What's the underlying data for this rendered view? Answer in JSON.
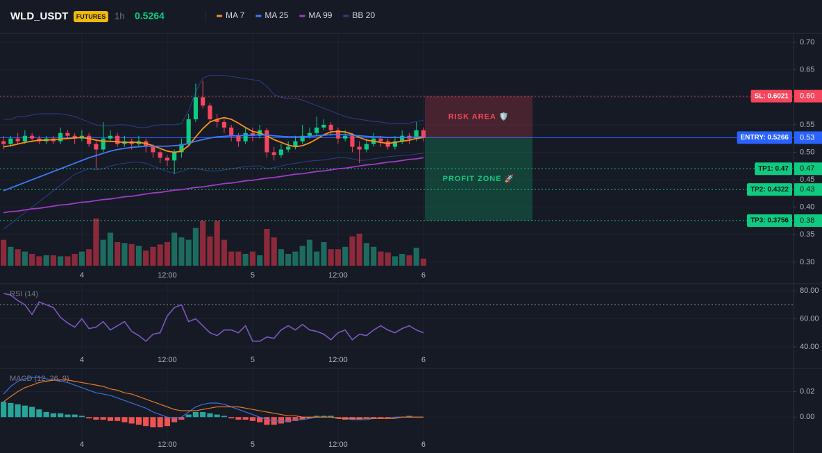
{
  "chart_data": [
    {
      "type": "candlestick",
      "title": "WLD_USDT",
      "badge": "FUTURES",
      "interval": "1h",
      "last_price": 0.5264,
      "up_color": "#0ecb81",
      "down_color": "#f6465d",
      "grid": true,
      "xlim": [
        -0.5,
        111
      ],
      "xticks": [
        {
          "value": 11,
          "label": "4"
        },
        {
          "value": 23,
          "label": "12:00"
        },
        {
          "value": 35,
          "label": "5"
        },
        {
          "value": 47,
          "label": "12:00"
        },
        {
          "value": 59,
          "label": "6"
        }
      ],
      "ylim": [
        0.291,
        0.714
      ],
      "yticks": [
        {
          "value": 0.7,
          "label": "0.70"
        },
        0.65,
        {
          "value": 0.6,
          "label": "0.60"
        },
        0.55,
        {
          "value": 0.5,
          "label": "0.50"
        },
        0.45,
        {
          "value": 0.4,
          "label": "0.40"
        },
        0.35,
        {
          "value": 0.3,
          "label": "0.30"
        }
      ],
      "candles": {
        "open": [
          0.52,
          0.515,
          0.525,
          0.52,
          0.53,
          0.525,
          0.52,
          0.525,
          0.52,
          0.535,
          0.53,
          0.525,
          0.53,
          0.515,
          0.505,
          0.525,
          0.53,
          0.515,
          0.52,
          0.515,
          0.52,
          0.51,
          0.5,
          0.49,
          0.485,
          0.5,
          0.515,
          0.56,
          0.6,
          0.585,
          0.56,
          0.555,
          0.545,
          0.53,
          0.52,
          0.535,
          0.53,
          0.54,
          0.5,
          0.495,
          0.505,
          0.51,
          0.52,
          0.53,
          0.535,
          0.545,
          0.55,
          0.54,
          0.525,
          0.53,
          0.51,
          0.505,
          0.515,
          0.525,
          0.52,
          0.51,
          0.52,
          0.53,
          0.525,
          0.54
        ],
        "high": [
          0.53,
          0.53,
          0.535,
          0.54,
          0.535,
          0.53,
          0.53,
          0.53,
          0.545,
          0.54,
          0.535,
          0.54,
          0.535,
          0.52,
          0.555,
          0.54,
          0.535,
          0.53,
          0.525,
          0.53,
          0.525,
          0.515,
          0.505,
          0.495,
          0.505,
          0.525,
          0.57,
          0.625,
          0.63,
          0.59,
          0.57,
          0.56,
          0.55,
          0.535,
          0.545,
          0.545,
          0.55,
          0.545,
          0.51,
          0.515,
          0.52,
          0.53,
          0.55,
          0.545,
          0.565,
          0.56,
          0.555,
          0.545,
          0.54,
          0.535,
          0.52,
          0.525,
          0.535,
          0.53,
          0.525,
          0.53,
          0.54,
          0.535,
          0.555,
          0.545
        ],
        "low": [
          0.505,
          0.51,
          0.515,
          0.515,
          0.52,
          0.515,
          0.515,
          0.515,
          0.515,
          0.525,
          0.515,
          0.52,
          0.51,
          0.47,
          0.5,
          0.52,
          0.51,
          0.51,
          0.505,
          0.51,
          0.5,
          0.49,
          0.48,
          0.475,
          0.46,
          0.49,
          0.51,
          0.555,
          0.58,
          0.555,
          0.545,
          0.535,
          0.52,
          0.51,
          0.515,
          0.52,
          0.525,
          0.49,
          0.485,
          0.49,
          0.5,
          0.505,
          0.515,
          0.525,
          0.53,
          0.54,
          0.53,
          0.515,
          0.52,
          0.5,
          0.48,
          0.5,
          0.51,
          0.51,
          0.505,
          0.505,
          0.515,
          0.515,
          0.52,
          0.52
        ],
        "close": [
          0.515,
          0.525,
          0.52,
          0.53,
          0.525,
          0.52,
          0.525,
          0.52,
          0.535,
          0.53,
          0.525,
          0.53,
          0.515,
          0.505,
          0.525,
          0.53,
          0.515,
          0.52,
          0.515,
          0.52,
          0.51,
          0.5,
          0.49,
          0.485,
          0.5,
          0.515,
          0.56,
          0.6,
          0.585,
          0.56,
          0.555,
          0.545,
          0.53,
          0.52,
          0.535,
          0.53,
          0.54,
          0.5,
          0.495,
          0.505,
          0.51,
          0.52,
          0.53,
          0.535,
          0.545,
          0.55,
          0.54,
          0.525,
          0.53,
          0.51,
          0.505,
          0.515,
          0.525,
          0.52,
          0.51,
          0.52,
          0.53,
          0.525,
          0.54,
          0.5264
        ]
      },
      "volume": {
        "ylim": [
          0,
          100
        ],
        "up_color": "#1d6b5f",
        "down_color": "#8c2a3c",
        "values": [
          55,
          40,
          35,
          30,
          25,
          20,
          22,
          22,
          20,
          20,
          25,
          30,
          35,
          100,
          55,
          70,
          50,
          48,
          46,
          42,
          32,
          40,
          45,
          50,
          70,
          60,
          55,
          80,
          95,
          62,
          95,
          55,
          30,
          30,
          25,
          30,
          22,
          78,
          60,
          35,
          25,
          30,
          42,
          55,
          30,
          50,
          35,
          35,
          40,
          62,
          68,
          48,
          40,
          30,
          28,
          20,
          25,
          22,
          38,
          15
        ]
      },
      "series": [
        {
          "name": "MA 7",
          "color": "#f7931a",
          "values": [
            0.51,
            0.512,
            0.515,
            0.518,
            0.52,
            0.522,
            0.522,
            0.523,
            0.524,
            0.525,
            0.526,
            0.527,
            0.525,
            0.522,
            0.52,
            0.52,
            0.519,
            0.518,
            0.518,
            0.518,
            0.516,
            0.512,
            0.507,
            0.502,
            0.5,
            0.502,
            0.512,
            0.528,
            0.543,
            0.555,
            0.56,
            0.563,
            0.56,
            0.553,
            0.545,
            0.538,
            0.535,
            0.53,
            0.523,
            0.518,
            0.513,
            0.51,
            0.512,
            0.517,
            0.524,
            0.532,
            0.537,
            0.538,
            0.537,
            0.533,
            0.527,
            0.522,
            0.52,
            0.518,
            0.516,
            0.518,
            0.52,
            0.522,
            0.525,
            0.527
          ]
        },
        {
          "name": "MA 25",
          "color": "#3d7bf7",
          "values": [
            0.43,
            0.435,
            0.44,
            0.445,
            0.45,
            0.455,
            0.46,
            0.465,
            0.47,
            0.475,
            0.48,
            0.485,
            0.49,
            0.494,
            0.498,
            0.502,
            0.505,
            0.507,
            0.509,
            0.51,
            0.511,
            0.511,
            0.511,
            0.511,
            0.512,
            0.513,
            0.516,
            0.52,
            0.523,
            0.526,
            0.528,
            0.529,
            0.53,
            0.53,
            0.531,
            0.531,
            0.532,
            0.531,
            0.53,
            0.529,
            0.528,
            0.528,
            0.528,
            0.529,
            0.53,
            0.531,
            0.532,
            0.532,
            0.532,
            0.531,
            0.53,
            0.529,
            0.528,
            0.528,
            0.527,
            0.527,
            0.527,
            0.527,
            0.528,
            0.528
          ]
        },
        {
          "name": "MA 99",
          "color": "#9c3cc4",
          "values": [
            0.39,
            0.392,
            0.393,
            0.395,
            0.397,
            0.398,
            0.4,
            0.402,
            0.404,
            0.405,
            0.407,
            0.409,
            0.41,
            0.412,
            0.414,
            0.415,
            0.417,
            0.419,
            0.42,
            0.422,
            0.424,
            0.426,
            0.427,
            0.429,
            0.431,
            0.432,
            0.434,
            0.436,
            0.437,
            0.439,
            0.441,
            0.443,
            0.444,
            0.446,
            0.448,
            0.449,
            0.451,
            0.453,
            0.454,
            0.456,
            0.458,
            0.46,
            0.461,
            0.463,
            0.465,
            0.466,
            0.468,
            0.47,
            0.471,
            0.473,
            0.475,
            0.477,
            0.478,
            0.48,
            0.482,
            0.483,
            0.485,
            0.487,
            0.488,
            0.49
          ]
        },
        {
          "name": "BB 20",
          "color": "#2c3f88",
          "upper": [
            0.56,
            0.56,
            0.565,
            0.565,
            0.568,
            0.57,
            0.57,
            0.57,
            0.57,
            0.568,
            0.565,
            0.56,
            0.555,
            0.55,
            0.548,
            0.548,
            0.55,
            0.55,
            0.548,
            0.545,
            0.545,
            0.548,
            0.55,
            0.55,
            0.55,
            0.552,
            0.575,
            0.61,
            0.635,
            0.64,
            0.64,
            0.64,
            0.638,
            0.636,
            0.634,
            0.632,
            0.63,
            0.62,
            0.605,
            0.6,
            0.598,
            0.598,
            0.595,
            0.59,
            0.585,
            0.58,
            0.575,
            0.57,
            0.565,
            0.562,
            0.56,
            0.558,
            0.556,
            0.555,
            0.553,
            0.552,
            0.552,
            0.553,
            0.556,
            0.558
          ],
          "lower": [
            0.36,
            0.37,
            0.38,
            0.39,
            0.4,
            0.41,
            0.42,
            0.43,
            0.44,
            0.45,
            0.46,
            0.465,
            0.47,
            0.468,
            0.47,
            0.475,
            0.478,
            0.48,
            0.482,
            0.482,
            0.48,
            0.475,
            0.47,
            0.465,
            0.462,
            0.465,
            0.47,
            0.47,
            0.468,
            0.466,
            0.466,
            0.468,
            0.47,
            0.472,
            0.474,
            0.475,
            0.475,
            0.47,
            0.472,
            0.475,
            0.478,
            0.48,
            0.482,
            0.484,
            0.485,
            0.486,
            0.488,
            0.49,
            0.49,
            0.488,
            0.485,
            0.486,
            0.488,
            0.49,
            0.492,
            0.493,
            0.494,
            0.495,
            0.497,
            0.498
          ]
        }
      ],
      "levels": [
        {
          "value": 0.6021,
          "label": "SL: 0.6021",
          "axis_label": "0.60",
          "color": "#f6465d"
        },
        {
          "value": 0.5266,
          "label": "ENTRY: 0.5266",
          "axis_label": "0.53",
          "color": "#2962ff"
        },
        {
          "value": 0.47,
          "label": "TP1: 0.47",
          "axis_label": "0.47",
          "color": "#0ecb81"
        },
        {
          "value": 0.4322,
          "label": "TP2: 0.4322",
          "axis_label": "0.43",
          "color": "#0ecb81"
        },
        {
          "value": 0.3756,
          "label": "TP3: 0.3756",
          "axis_label": "0.38",
          "color": "#0ecb81"
        }
      ],
      "zones": [
        {
          "label": "RISK AREA 🛡️",
          "color": "#f6465d"
        },
        {
          "label": "PROFIT ZONE 🚀",
          "color": "#0ecb81"
        }
      ]
    },
    {
      "type": "line",
      "title": "RSI (14)",
      "color": "#7e57c2",
      "level": 70,
      "ylim": [
        36,
        84.5
      ],
      "yticks": [
        {
          "value": 80,
          "label": "80.00"
        },
        {
          "value": 60,
          "label": "60.00"
        },
        {
          "value": 40,
          "label": "40.00"
        }
      ],
      "values": [
        78,
        77,
        73,
        70,
        63,
        72,
        70,
        68,
        61,
        57,
        54,
        60,
        53,
        54,
        58,
        52,
        55,
        58,
        51,
        48,
        44,
        49,
        50,
        62,
        68,
        70,
        58,
        60,
        55,
        50,
        48,
        52,
        52,
        50,
        55,
        44,
        44,
        47,
        46,
        52,
        55,
        52,
        56,
        52,
        51,
        49,
        45,
        50,
        52,
        45,
        49,
        48,
        52,
        55,
        52,
        50,
        53,
        55,
        52,
        50
      ]
    },
    {
      "type": "macd",
      "title": "MACD (12, 26, 9)",
      "ylim": [
        -0.021,
        0.037
      ],
      "yticks": [
        0.02,
        {
          "value": 0,
          "label": "0.00"
        }
      ],
      "macd": {
        "color": "#3d6fe0",
        "values": [
          0.018,
          0.024,
          0.028,
          0.03,
          0.031,
          0.031,
          0.03,
          0.029,
          0.028,
          0.027,
          0.025,
          0.023,
          0.021,
          0.019,
          0.018,
          0.017,
          0.015,
          0.013,
          0.011,
          0.009,
          0.007,
          0.004,
          0.002,
          0,
          -0.001,
          0,
          0.004,
          0.008,
          0.01,
          0.011,
          0.011,
          0.01,
          0.008,
          0.006,
          0.004,
          0.002,
          0,
          -0.002,
          -0.003,
          -0.003,
          -0.003,
          -0.002,
          -0.002,
          -0.001,
          0,
          0,
          0,
          -0.001,
          -0.001,
          -0.002,
          -0.002,
          -0.002,
          -0.001,
          -0.001,
          -0.001,
          0,
          0,
          0,
          0,
          0
        ]
      },
      "signal": {
        "color": "#e8782a",
        "values": [
          0.012,
          0.016,
          0.02,
          0.023,
          0.025,
          0.027,
          0.028,
          0.029,
          0.029,
          0.029,
          0.028,
          0.027,
          0.026,
          0.025,
          0.024,
          0.022,
          0.021,
          0.019,
          0.018,
          0.016,
          0.014,
          0.012,
          0.01,
          0.008,
          0.006,
          0.005,
          0.005,
          0.005,
          0.006,
          0.007,
          0.008,
          0.008,
          0.008,
          0.008,
          0.007,
          0.006,
          0.005,
          0.004,
          0.003,
          0.002,
          0.001,
          0.001,
          0,
          0,
          0,
          0,
          0,
          -0.001,
          -0.001,
          -0.001,
          -0.001,
          -0.001,
          -0.001,
          -0.001,
          -0.001,
          -0.001,
          0,
          0,
          0,
          0
        ]
      },
      "histogram": {
        "up_color": "#26a69a",
        "down_color": "#ef5350",
        "values": [
          0.012,
          0.011,
          0.01,
          0.009,
          0.008,
          0.006,
          0.004,
          0.003,
          0.003,
          0.002,
          0.002,
          0.001,
          -0.001,
          -0.002,
          -0.002,
          -0.003,
          -0.003,
          -0.004,
          -0.005,
          -0.006,
          -0.007,
          -0.008,
          -0.008,
          -0.007,
          -0.004,
          -0.002,
          0.002,
          0.004,
          0.004,
          0.003,
          0.002,
          0.001,
          -0.001,
          -0.002,
          -0.002,
          -0.003,
          -0.004,
          -0.006,
          -0.006,
          -0.005,
          -0.004,
          -0.003,
          -0.002,
          -0.001,
          0.001,
          0.001,
          0.001,
          -0.001,
          -0.002,
          -0.002,
          -0.002,
          -0.001,
          -0.001,
          -0.001,
          -0.001,
          0,
          0,
          0.001,
          0,
          0
        ]
      }
    }
  ]
}
